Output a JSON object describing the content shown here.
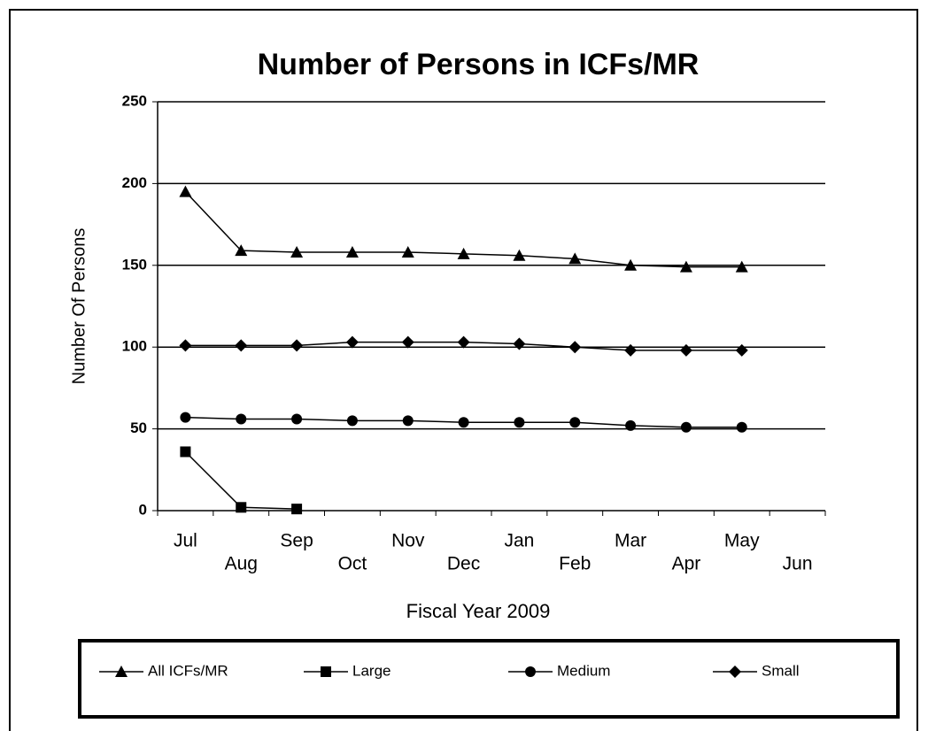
{
  "chart_data": {
    "type": "line",
    "title": "Number of Persons in ICFs/MR",
    "x_label": "Fiscal Year 2009",
    "y_label": "Number Of Persons",
    "categories": [
      "Jul",
      "Aug",
      "Sep",
      "Oct",
      "Nov",
      "Dec",
      "Jan",
      "Feb",
      "Mar",
      "Apr",
      "May",
      "Jun"
    ],
    "ylim": [
      0,
      250
    ],
    "yticks": [
      0,
      50,
      100,
      150,
      200,
      250
    ],
    "grid": true,
    "legend": "bottom",
    "series": [
      {
        "name": "All ICFs/MR",
        "color": "#000000",
        "marker": "triangle",
        "values": [
          195,
          159,
          158,
          158,
          158,
          157,
          156,
          154,
          150,
          149,
          149,
          null
        ]
      },
      {
        "name": "Large",
        "color": "#000000",
        "marker": "square",
        "values": [
          36,
          2,
          1,
          null,
          null,
          null,
          null,
          null,
          null,
          null,
          null,
          null
        ]
      },
      {
        "name": "Medium",
        "color": "#000000",
        "marker": "circle",
        "values": [
          57,
          56,
          56,
          55,
          55,
          54,
          54,
          54,
          52,
          51,
          51,
          null
        ]
      },
      {
        "name": "Small",
        "color": "#000000",
        "marker": "diamond",
        "values": [
          101,
          101,
          101,
          103,
          103,
          103,
          102,
          100,
          98,
          98,
          98,
          null
        ]
      }
    ]
  }
}
